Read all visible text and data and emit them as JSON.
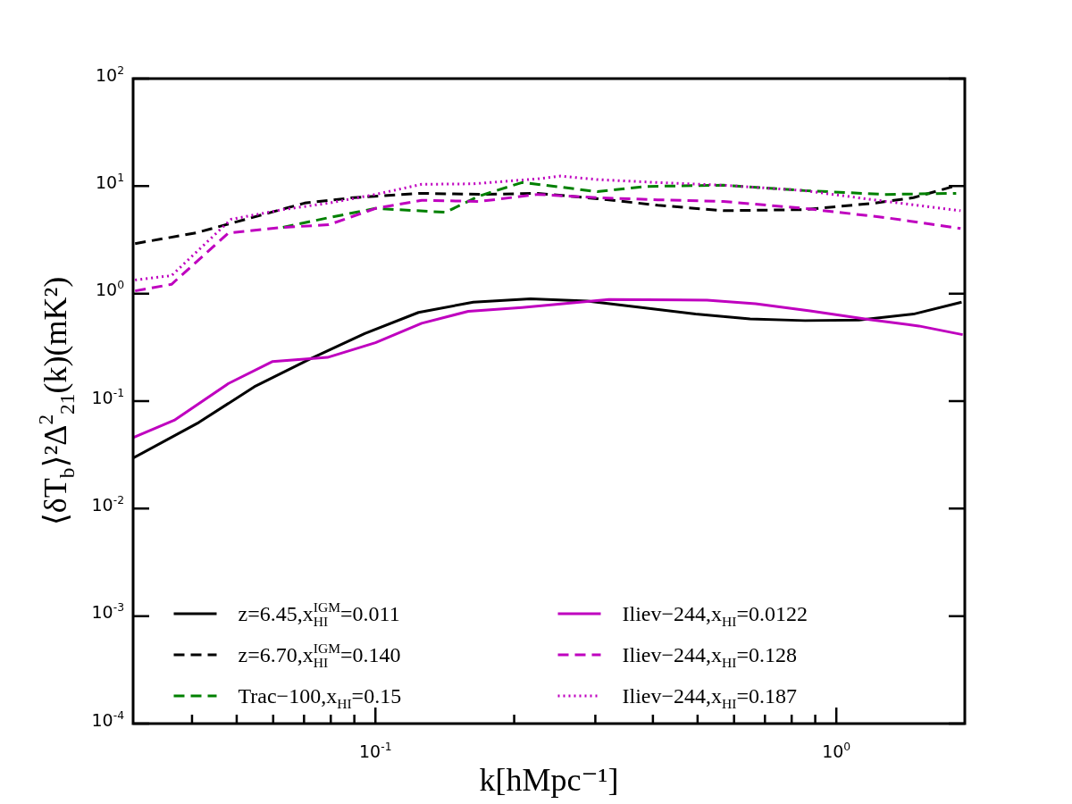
{
  "chart_data": {
    "type": "line",
    "xlabel": "k[hMpc⁻¹]",
    "ylabel": "⟨δT$_{b}$⟩²Δ$^{2}$$_{21}$(k)(mK²)",
    "log": "xy",
    "grid": false,
    "legend": "bottom",
    "marker": "none",
    "xlim": [
      0.0298,
      1.9
    ],
    "xticks": [
      {
        "value": 0.04,
        "label": null
      },
      {
        "value": 0.05,
        "label": null
      },
      {
        "value": 0.06,
        "label": null
      },
      {
        "value": 0.07,
        "label": null
      },
      {
        "value": 0.08,
        "label": null
      },
      {
        "value": 0.09,
        "label": null
      },
      {
        "value": 0.1,
        "label": "10$^{-1}$"
      },
      {
        "value": 0.2,
        "label": null
      },
      {
        "value": 0.3,
        "label": null
      },
      {
        "value": 0.4,
        "label": null
      },
      {
        "value": 0.5,
        "label": null
      },
      {
        "value": 0.6,
        "label": null
      },
      {
        "value": 0.7,
        "label": null
      },
      {
        "value": 0.8,
        "label": null
      },
      {
        "value": 0.9,
        "label": null
      },
      {
        "value": 1,
        "label": "10$^{0}$"
      }
    ],
    "ylim": [
      0.0001,
      100
    ],
    "yticks": [
      {
        "value": 0.0001,
        "label": "10$^{-4}$"
      },
      {
        "value": 0.001,
        "label": "10$^{-3}$"
      },
      {
        "value": 0.01,
        "label": "10$^{-2}$"
      },
      {
        "value": 0.1,
        "label": "10$^{-1}$"
      },
      {
        "value": 1,
        "label": "10$^{0}$"
      },
      {
        "value": 10,
        "label": "10$^{1}$"
      },
      {
        "value": 100,
        "label": "10$^{2}$"
      }
    ],
    "series": [
      {
        "name": "z=6.45,x$_{HI}$$^{IGM}$=0.011",
        "color": "#000000",
        "line_style": "solid",
        "x": [
          0.0298,
          0.0414,
          0.0546,
          0.0721,
          0.0948,
          0.124,
          0.163,
          0.217,
          0.288,
          0.378,
          0.495,
          0.65,
          0.855,
          1.12,
          1.47,
          1.87
        ],
        "values": [
          0.0295,
          0.0634,
          0.136,
          0.246,
          0.425,
          0.668,
          0.832,
          0.893,
          0.851,
          0.741,
          0.645,
          0.581,
          0.561,
          0.567,
          0.645,
          0.832
        ]
      },
      {
        "name": "z=6.70,x$_{HI}$$^{IGM}$=0.140",
        "color": "#000000",
        "line_style": "dashed",
        "x": [
          0.0301,
          0.0408,
          0.0565,
          0.0702,
          0.0896,
          0.124,
          0.172,
          0.225,
          0.303,
          0.41,
          0.568,
          0.853,
          1.21,
          1.47,
          1.82
        ],
        "values": [
          2.92,
          3.67,
          5.38,
          6.95,
          7.81,
          8.57,
          8.37,
          8.57,
          7.64,
          6.64,
          5.91,
          6.05,
          6.95,
          7.81,
          10.1
        ]
      },
      {
        "name": "Trac−100,x$_{HI}$=0.15",
        "color": "#008000",
        "line_style": "dashed",
        "x": [
          0.063,
          0.0792,
          0.1,
          0.142,
          0.168,
          0.208,
          0.252,
          0.303,
          0.388,
          0.568,
          0.853,
          1.28,
          1.82
        ],
        "values": [
          4.13,
          5.09,
          6.2,
          5.71,
          8.09,
          10.8,
          9.81,
          8.87,
          9.94,
          10.2,
          9.08,
          8.37,
          8.57
        ]
      },
      {
        "name": "Iliev−244,x$_{HI}$=0.0122",
        "color": "#bf00bf",
        "line_style": "solid",
        "x": [
          0.0298,
          0.0366,
          0.048,
          0.0597,
          0.0787,
          0.1,
          0.126,
          0.159,
          0.208,
          0.321,
          0.524,
          0.668,
          0.877,
          1.18,
          1.51,
          1.88
        ],
        "values": [
          0.0458,
          0.0664,
          0.146,
          0.233,
          0.255,
          0.349,
          0.53,
          0.684,
          0.742,
          0.882,
          0.871,
          0.804,
          0.692,
          0.574,
          0.5,
          0.415
        ]
      },
      {
        "name": "Iliev−244,x$_{HI}$=0.128",
        "color": "#bf00bf",
        "line_style": "dashed",
        "x": [
          0.0301,
          0.0361,
          0.048,
          0.063,
          0.0792,
          0.1,
          0.126,
          0.168,
          0.225,
          0.303,
          0.41,
          0.568,
          0.853,
          1.28,
          1.86
        ],
        "values": [
          1.06,
          1.22,
          3.67,
          4.13,
          4.37,
          6.2,
          7.38,
          7.2,
          8.37,
          7.81,
          7.46,
          7.2,
          6.2,
          5.09,
          4.03
        ]
      },
      {
        "name": "Iliev−244,x$_{HI}$=0.187",
        "color": "#bf00bf",
        "line_style": "dotted",
        "x": [
          0.0301,
          0.0361,
          0.0486,
          0.063,
          0.0792,
          0.1,
          0.126,
          0.163,
          0.225,
          0.252,
          0.303,
          0.41,
          0.568,
          0.853,
          1.28,
          1.86
        ],
        "values": [
          1.34,
          1.47,
          4.91,
          6.05,
          6.95,
          8.37,
          10.4,
          10.5,
          11.7,
          12.4,
          11.5,
          10.8,
          10.2,
          9.08,
          7.2,
          5.91
        ]
      }
    ]
  }
}
